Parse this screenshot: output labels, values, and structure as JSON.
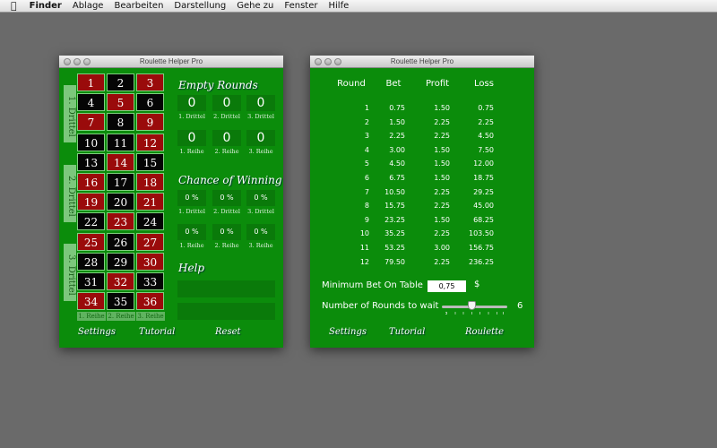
{
  "menubar": {
    "apple": "",
    "items": [
      "Finder",
      "Ablage",
      "Bearbeiten",
      "Darstellung",
      "Gehe zu",
      "Fenster",
      "Hilfe"
    ]
  },
  "window1": {
    "title": "Roulette Helper Pro",
    "numbers": [
      [
        1,
        "red"
      ],
      [
        2,
        "black"
      ],
      [
        3,
        "red"
      ],
      [
        4,
        "black"
      ],
      [
        5,
        "red"
      ],
      [
        6,
        "black"
      ],
      [
        7,
        "red"
      ],
      [
        8,
        "black"
      ],
      [
        9,
        "red"
      ],
      [
        10,
        "black"
      ],
      [
        11,
        "black"
      ],
      [
        12,
        "red"
      ],
      [
        13,
        "black"
      ],
      [
        14,
        "red"
      ],
      [
        15,
        "black"
      ],
      [
        16,
        "red"
      ],
      [
        17,
        "black"
      ],
      [
        18,
        "red"
      ],
      [
        19,
        "red"
      ],
      [
        20,
        "black"
      ],
      [
        21,
        "red"
      ],
      [
        22,
        "black"
      ],
      [
        23,
        "red"
      ],
      [
        24,
        "black"
      ],
      [
        25,
        "red"
      ],
      [
        26,
        "black"
      ],
      [
        27,
        "red"
      ],
      [
        28,
        "black"
      ],
      [
        29,
        "black"
      ],
      [
        30,
        "red"
      ],
      [
        31,
        "black"
      ],
      [
        32,
        "red"
      ],
      [
        33,
        "black"
      ],
      [
        34,
        "red"
      ],
      [
        35,
        "black"
      ],
      [
        36,
        "red"
      ]
    ],
    "drittel_tabs": [
      "1. Drittel",
      "2. Drittel",
      "3. Drittel"
    ],
    "reihe_labels": [
      "1. Reihe",
      "2. Reihe",
      "3. Reihe"
    ],
    "empty_rounds": {
      "title": "Empty Rounds",
      "drittel": [
        {
          "value": "0",
          "label": "1. Drittel"
        },
        {
          "value": "0",
          "label": "2. Drittel"
        },
        {
          "value": "0",
          "label": "3. Drittel"
        }
      ],
      "reihe": [
        {
          "value": "0",
          "label": "1. Reihe"
        },
        {
          "value": "0",
          "label": "2. Reihe"
        },
        {
          "value": "0",
          "label": "3. Reihe"
        }
      ]
    },
    "chance": {
      "title": "Chance of Winning",
      "drittel": [
        {
          "value": "0 %",
          "label": "1. Drittel"
        },
        {
          "value": "0 %",
          "label": "2. Drittel"
        },
        {
          "value": "0 %",
          "label": "3. Drittel"
        }
      ],
      "reihe": [
        {
          "value": "0 %",
          "label": "1. Reihe"
        },
        {
          "value": "0 %",
          "label": "2. Reihe"
        },
        {
          "value": "0 %",
          "label": "3. Reihe"
        }
      ]
    },
    "help_title": "Help",
    "buttons": {
      "settings": "Settings",
      "tutorial": "Tutorial",
      "reset": "Reset"
    },
    "colors": {
      "felt": "#0b8c0b",
      "red": "#9a0b0b",
      "black": "#050505"
    }
  },
  "window2": {
    "title": "Roulette Helper Pro",
    "headers": [
      "Round",
      "Bet",
      "Profit",
      "Loss"
    ],
    "rows": [
      [
        "1",
        "0.75",
        "1.50",
        "0.75"
      ],
      [
        "2",
        "1.50",
        "2.25",
        "2.25"
      ],
      [
        "3",
        "2.25",
        "2.25",
        "4.50"
      ],
      [
        "4",
        "3.00",
        "1.50",
        "7.50"
      ],
      [
        "5",
        "4.50",
        "1.50",
        "12.00"
      ],
      [
        "6",
        "6.75",
        "1.50",
        "18.75"
      ],
      [
        "7",
        "10.50",
        "2.25",
        "29.25"
      ],
      [
        "8",
        "15.75",
        "2.25",
        "45.00"
      ],
      [
        "9",
        "23.25",
        "1.50",
        "68.25"
      ],
      [
        "10",
        "35.25",
        "2.25",
        "103.50"
      ],
      [
        "11",
        "53.25",
        "3.00",
        "156.75"
      ],
      [
        "12",
        "79.50",
        "2.25",
        "236.25"
      ]
    ],
    "min_bet_label": "Minimum Bet On Table",
    "min_bet_value": "0,75",
    "currency": "$",
    "rounds_label": "Number of Rounds to wait",
    "rounds_value": "6",
    "slider": {
      "min": 3,
      "max": 10,
      "value": 6
    },
    "buttons": {
      "settings": "Settings",
      "tutorial": "Tutorial",
      "roulette": "Roulette"
    }
  }
}
